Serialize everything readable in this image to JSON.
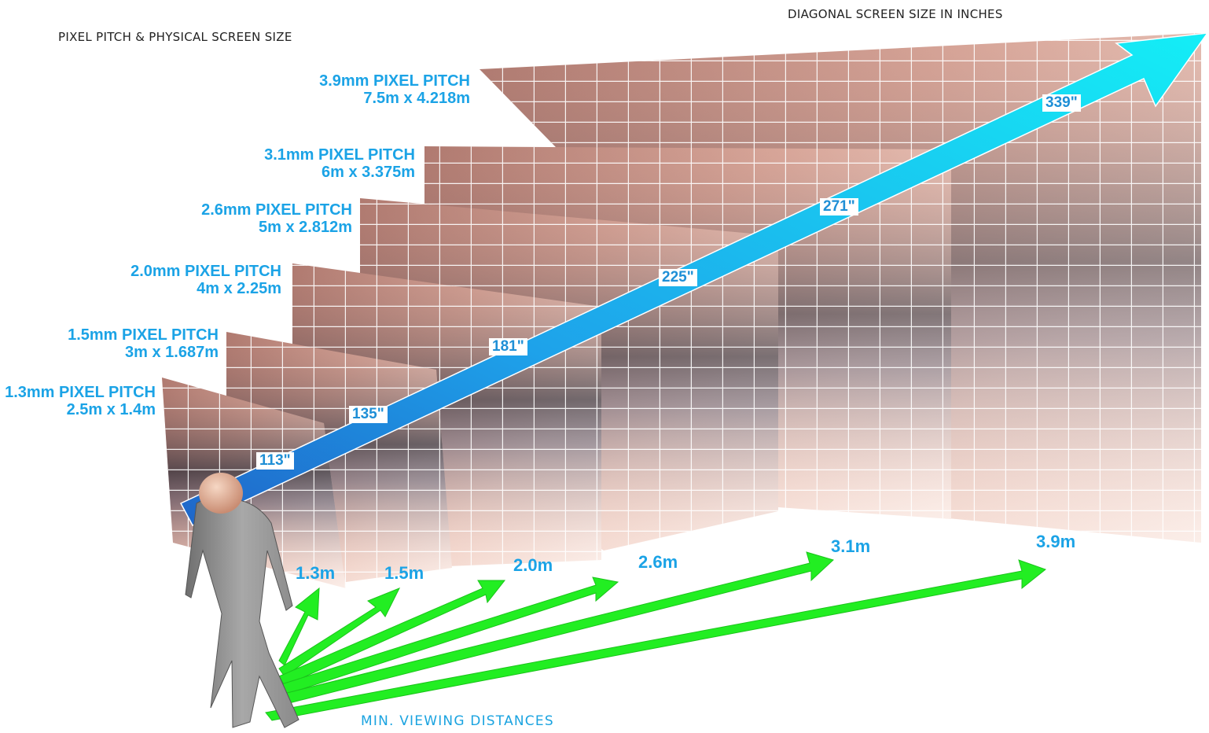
{
  "headers": {
    "left": "PIXEL PITCH & PHYSICAL SCREEN SIZE",
    "right": "DIAGONAL SCREEN SIZE IN INCHES"
  },
  "footer": "MIN. VIEWING DISTANCES",
  "panels": [
    {
      "pitch": "1.3mm PIXEL PITCH",
      "size": "2.5m x 1.4m",
      "diagonal": "113\"",
      "distance": "1.3m"
    },
    {
      "pitch": "1.5mm PIXEL PITCH",
      "size": "3m x 1.687m",
      "diagonal": "135\"",
      "distance": "1.5m"
    },
    {
      "pitch": "2.0mm PIXEL PITCH",
      "size": "4m x 2.25m",
      "diagonal": "181\"",
      "distance": "2.0m"
    },
    {
      "pitch": "2.6mm PIXEL PITCH",
      "size": "5m x 2.812m",
      "diagonal": "225\"",
      "distance": "2.6m"
    },
    {
      "pitch": "3.1mm PIXEL PITCH",
      "size": "6m x 3.375m",
      "diagonal": "271\"",
      "distance": "3.1m"
    },
    {
      "pitch": "3.9mm PIXEL PITCH",
      "size": "7.5m x 4.218m",
      "diagonal": "339\"",
      "distance": "3.9m"
    }
  ],
  "colors": {
    "label_blue": "#1ba3e6",
    "diagonal_arrow": "#12d8f5",
    "distance_arrow": "#22ee22",
    "panel_skin": "#f0c8bc",
    "grid": "#ffffff"
  },
  "icons": [
    "person-figure-icon"
  ]
}
